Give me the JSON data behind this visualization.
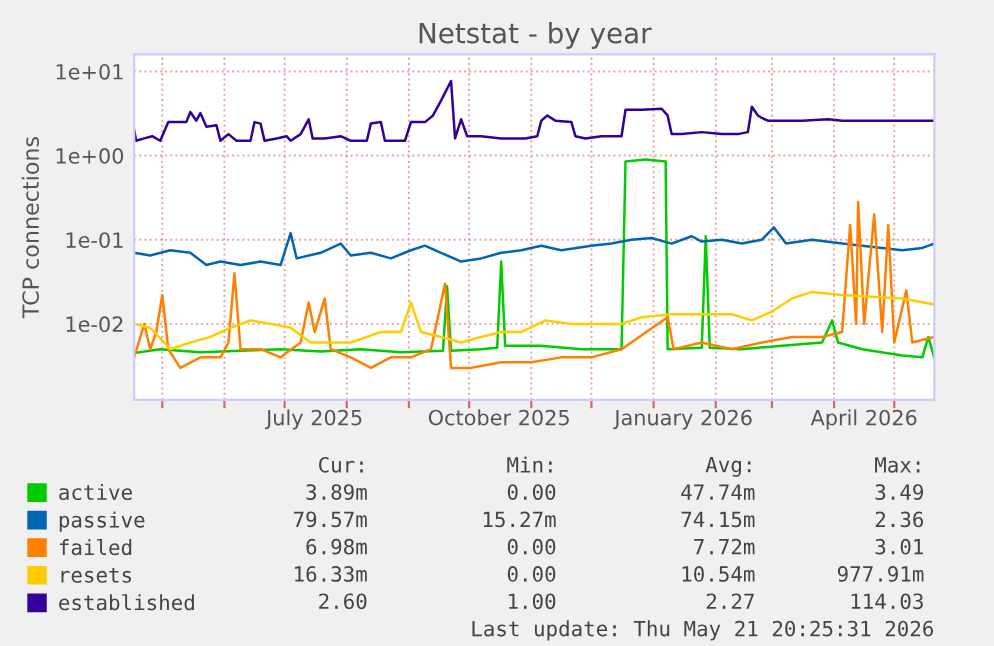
{
  "chart_data": {
    "type": "line",
    "title": "Netstat - by year",
    "ylabel": "TCP connections",
    "log": "y",
    "grid": true,
    "legend": "bottom",
    "marker": "none",
    "line_style": "solid",
    "xlim": [
      "2025-04-17",
      "2026-05-21"
    ],
    "xticks": [
      {
        "value": "2025-05-01",
        "label": null
      },
      {
        "value": "2025-06-01",
        "label": null
      },
      {
        "value": "2025-07-01",
        "label": null
      },
      {
        "value": "2025-07-16",
        "label": "July 2025"
      },
      {
        "value": "2025-08-01",
        "label": null
      },
      {
        "value": "2025-09-01",
        "label": null
      },
      {
        "value": "2025-10-01",
        "label": null
      },
      {
        "value": "2025-10-16",
        "label": "October 2025"
      },
      {
        "value": "2025-11-01",
        "label": null
      },
      {
        "value": "2025-12-01",
        "label": null
      },
      {
        "value": "2026-01-01",
        "label": null
      },
      {
        "value": "2026-01-16",
        "label": "January 2026"
      },
      {
        "value": "2026-02-01",
        "label": null
      },
      {
        "value": "2026-03-01",
        "label": null
      },
      {
        "value": "2026-04-01",
        "label": null
      },
      {
        "value": "2026-04-16",
        "label": "April 2026"
      },
      {
        "value": "2026-05-01",
        "label": null
      }
    ],
    "ylim": [
      0.00125,
      16
    ],
    "yticks": [
      {
        "value": 0.01,
        "label": "1e-02"
      },
      {
        "value": 0.1,
        "label": "1e-01"
      },
      {
        "value": 1,
        "label": "1e+00"
      },
      {
        "value": 10,
        "label": "1e+01"
      }
    ],
    "series": [
      {
        "name": "active",
        "color": "#00cc00",
        "x": [
          "2025-04-17",
          "2025-04-30",
          "2025-05-20",
          "2025-06-09",
          "2025-06-29",
          "2025-07-19",
          "2025-08-08",
          "2025-08-28",
          "2025-09-18",
          "2025-09-20",
          "2025-09-22",
          "2025-10-07",
          "2025-10-15",
          "2025-10-17",
          "2025-10-19",
          "2025-11-06",
          "2025-11-26",
          "2025-12-16",
          "2025-12-18",
          "2025-12-28",
          "2026-01-07",
          "2026-01-08",
          "2026-01-25",
          "2026-01-27",
          "2026-01-29",
          "2026-02-14",
          "2026-03-06",
          "2026-03-26",
          "2026-03-31",
          "2026-04-03",
          "2026-04-15",
          "2026-05-05",
          "2026-05-15",
          "2026-05-18",
          "2026-05-21"
        ],
        "values": [
          0.0045,
          0.005,
          0.0046,
          0.0048,
          0.005,
          0.0047,
          0.005,
          0.0046,
          0.0048,
          0.028,
          0.0048,
          0.005,
          0.0052,
          0.055,
          0.0055,
          0.0055,
          0.005,
          0.005,
          0.85,
          0.9,
          0.85,
          0.005,
          0.0052,
          0.11,
          0.0052,
          0.005,
          0.0055,
          0.006,
          0.011,
          0.006,
          0.005,
          0.0042,
          0.004,
          0.007,
          0.0039
        ]
      },
      {
        "name": "passive",
        "color": "#0066b3",
        "x": [
          "2025-04-17",
          "2025-04-25",
          "2025-05-05",
          "2025-05-15",
          "2025-05-23",
          "2025-05-30",
          "2025-06-09",
          "2025-06-19",
          "2025-06-29",
          "2025-07-04",
          "2025-07-07",
          "2025-07-19",
          "2025-07-29",
          "2025-08-03",
          "2025-08-13",
          "2025-08-23",
          "2025-09-02",
          "2025-09-09",
          "2025-09-17",
          "2025-09-27",
          "2025-10-07",
          "2025-10-17",
          "2025-10-27",
          "2025-11-06",
          "2025-11-16",
          "2025-12-01",
          "2025-12-11",
          "2025-12-21",
          "2025-12-31",
          "2026-01-10",
          "2026-01-20",
          "2026-01-25",
          "2026-02-04",
          "2026-02-14",
          "2026-02-24",
          "2026-03-02",
          "2026-03-08",
          "2026-03-21",
          "2026-04-05",
          "2026-04-15",
          "2026-04-25",
          "2026-05-05",
          "2026-05-15",
          "2026-05-21"
        ],
        "values": [
          0.07,
          0.065,
          0.075,
          0.07,
          0.05,
          0.055,
          0.05,
          0.055,
          0.05,
          0.12,
          0.06,
          0.07,
          0.09,
          0.065,
          0.07,
          0.06,
          0.075,
          0.085,
          0.07,
          0.055,
          0.06,
          0.07,
          0.075,
          0.085,
          0.075,
          0.085,
          0.09,
          0.1,
          0.105,
          0.09,
          0.11,
          0.095,
          0.1,
          0.09,
          0.1,
          0.14,
          0.09,
          0.1,
          0.09,
          0.085,
          0.08,
          0.075,
          0.08,
          0.09
        ]
      },
      {
        "name": "failed",
        "color": "#ff8000",
        "x": [
          "2025-04-17",
          "2025-04-22",
          "2025-04-25",
          "2025-04-28",
          "2025-05-01",
          "2025-05-04",
          "2025-05-10",
          "2025-05-20",
          "2025-05-30",
          "2025-06-03",
          "2025-06-06",
          "2025-06-09",
          "2025-06-19",
          "2025-06-29",
          "2025-07-09",
          "2025-07-13",
          "2025-07-16",
          "2025-07-21",
          "2025-07-24",
          "2025-08-03",
          "2025-08-13",
          "2025-08-23",
          "2025-09-02",
          "2025-09-12",
          "2025-09-19",
          "2025-09-22",
          "2025-10-02",
          "2025-10-17",
          "2025-11-01",
          "2025-11-16",
          "2025-12-01",
          "2025-12-16",
          "2026-01-08",
          "2026-01-11",
          "2026-01-25",
          "2026-02-09",
          "2026-02-24",
          "2026-03-11",
          "2026-03-26",
          "2026-04-05",
          "2026-04-09",
          "2026-04-12",
          "2026-04-13",
          "2026-04-16",
          "2026-04-21",
          "2026-04-25",
          "2026-04-28",
          "2026-05-01",
          "2026-05-07",
          "2026-05-10",
          "2026-05-21"
        ],
        "values": [
          0.004,
          0.01,
          0.005,
          0.008,
          0.022,
          0.005,
          0.003,
          0.004,
          0.004,
          0.006,
          0.04,
          0.005,
          0.005,
          0.004,
          0.006,
          0.018,
          0.008,
          0.02,
          0.005,
          0.004,
          0.003,
          0.004,
          0.004,
          0.005,
          0.03,
          0.003,
          0.003,
          0.0035,
          0.0035,
          0.004,
          0.004,
          0.005,
          0.012,
          0.005,
          0.006,
          0.005,
          0.006,
          0.007,
          0.007,
          0.008,
          0.15,
          0.01,
          0.28,
          0.01,
          0.2,
          0.008,
          0.15,
          0.006,
          0.025,
          0.006,
          0.007
        ]
      },
      {
        "name": "resets",
        "color": "#ffcc00",
        "x": [
          "2025-04-17",
          "2025-04-25",
          "2025-05-05",
          "2025-05-15",
          "2025-05-25",
          "2025-06-04",
          "2025-06-14",
          "2025-06-24",
          "2025-07-04",
          "2025-07-14",
          "2025-07-24",
          "2025-08-03",
          "2025-08-18",
          "2025-08-28",
          "2025-09-02",
          "2025-09-07",
          "2025-09-17",
          "2025-09-27",
          "2025-10-07",
          "2025-10-17",
          "2025-10-27",
          "2025-11-08",
          "2025-11-21",
          "2025-12-06",
          "2025-12-16",
          "2025-12-26",
          "2026-01-10",
          "2026-01-25",
          "2026-02-09",
          "2026-02-19",
          "2026-03-01",
          "2026-03-11",
          "2026-03-21",
          "2026-04-05",
          "2026-04-20",
          "2026-05-05",
          "2026-05-21"
        ],
        "values": [
          0.01,
          0.009,
          0.005,
          0.006,
          0.007,
          0.009,
          0.011,
          0.01,
          0.009,
          0.006,
          0.006,
          0.006,
          0.008,
          0.008,
          0.018,
          0.008,
          0.007,
          0.006,
          0.007,
          0.008,
          0.008,
          0.011,
          0.01,
          0.01,
          0.01,
          0.012,
          0.013,
          0.013,
          0.013,
          0.011,
          0.014,
          0.02,
          0.024,
          0.022,
          0.021,
          0.02,
          0.017
        ]
      },
      {
        "name": "established",
        "color": "#330099",
        "x": [
          "2025-04-17",
          "2025-04-18",
          "2025-04-22",
          "2025-04-26",
          "2025-04-30",
          "2025-05-04",
          "2025-05-13",
          "2025-05-15",
          "2025-05-18",
          "2025-05-20",
          "2025-05-23",
          "2025-05-28",
          "2025-05-30",
          "2025-06-03",
          "2025-06-07",
          "2025-06-14",
          "2025-06-16",
          "2025-06-19",
          "2025-06-21",
          "2025-06-27",
          "2025-07-02",
          "2025-07-04",
          "2025-07-09",
          "2025-07-13",
          "2025-07-15",
          "2025-07-21",
          "2025-07-29",
          "2025-08-03",
          "2025-08-11",
          "2025-08-13",
          "2025-08-18",
          "2025-08-20",
          "2025-08-30",
          "2025-09-02",
          "2025-09-09",
          "2025-09-13",
          "2025-09-17",
          "2025-09-22",
          "2025-09-24",
          "2025-09-27",
          "2025-09-30",
          "2025-10-07",
          "2025-10-17",
          "2025-10-29",
          "2025-11-04",
          "2025-11-06",
          "2025-11-09",
          "2025-11-13",
          "2025-11-21",
          "2025-11-23",
          "2025-11-28",
          "2025-12-06",
          "2025-12-16",
          "2025-12-18",
          "2025-12-26",
          "2026-01-05",
          "2026-01-08",
          "2026-01-10",
          "2026-01-15",
          "2026-01-25",
          "2026-02-04",
          "2026-02-12",
          "2026-02-17",
          "2026-02-19",
          "2026-02-22",
          "2026-02-24",
          "2026-02-27",
          "2026-03-16",
          "2026-03-29",
          "2026-04-05",
          "2026-04-25",
          "2026-05-10",
          "2026-05-21"
        ],
        "values": [
          2.0,
          1.5,
          1.6,
          1.7,
          1.5,
          2.5,
          2.5,
          3.3,
          2.6,
          3.2,
          2.2,
          2.3,
          1.5,
          1.8,
          1.5,
          1.5,
          2.5,
          2.4,
          1.5,
          1.6,
          1.7,
          1.5,
          1.8,
          2.7,
          1.6,
          1.6,
          1.7,
          1.5,
          1.5,
          2.4,
          2.5,
          1.5,
          1.5,
          2.5,
          2.5,
          3.0,
          4.5,
          7.7,
          1.6,
          2.7,
          1.7,
          1.7,
          1.6,
          1.6,
          1.7,
          2.6,
          3.0,
          2.6,
          2.5,
          1.7,
          1.6,
          1.7,
          1.7,
          3.5,
          3.5,
          3.6,
          3.0,
          1.8,
          1.8,
          1.9,
          1.8,
          1.8,
          1.9,
          3.8,
          3.0,
          2.8,
          2.6,
          2.6,
          2.7,
          2.6,
          2.6,
          2.6,
          2.6
        ]
      }
    ],
    "annotations": [
      "Cur:",
      "Min:",
      "Avg:",
      "Max:",
      "3.89m",
      "0.00",
      "47.74m",
      "3.49",
      "79.57m",
      "15.27m",
      "74.15m",
      "2.36",
      "6.98m",
      "0.00",
      "7.72m",
      "3.01",
      "16.33m",
      "0.00",
      "10.54m",
      "977.91m",
      "2.60",
      "1.00",
      "2.27",
      "114.03",
      "Last update: Thu May 21 20:25:31 2026"
    ]
  }
}
